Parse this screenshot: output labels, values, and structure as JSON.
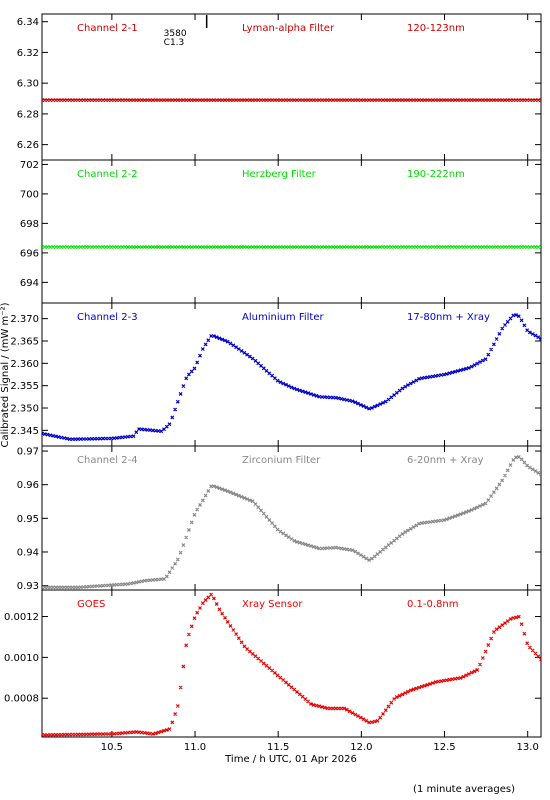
{
  "ylabel": "Calibrated Signal / (mW m⁻²)",
  "xlabel": "Time / h UTC, 01 Apr 2026",
  "footnote": "(1 minute averages)",
  "xlim": [
    10.08,
    13.08
  ],
  "xticks": [
    10.5,
    11.0,
    11.5,
    12.0,
    12.5,
    13.0
  ],
  "xtick_labels": [
    "10.5",
    "11.0",
    "11.5",
    "12.0",
    "12.5",
    "13.0"
  ],
  "top_marker": {
    "x": 11.07,
    "label1": "3580",
    "label2": "C1.3"
  },
  "chart_data": [
    {
      "type": "scatter",
      "color": "#cc0000",
      "label_left": "Channel 2-1",
      "label_mid": "Lyman-alpha Filter",
      "label_right": "120-123nm",
      "ylim": [
        6.25,
        6.345
      ],
      "yticks": [
        6.26,
        6.28,
        6.3,
        6.32,
        6.34
      ],
      "ytick_labels": [
        "6.26",
        "6.28",
        "6.30",
        "6.32",
        "6.34"
      ],
      "x": [
        10.08,
        13.08
      ],
      "y": [
        6.289,
        6.289
      ]
    },
    {
      "type": "scatter",
      "color": "#00dd00",
      "label_left": "Channel 2-2",
      "label_mid": "Herzberg Filter",
      "label_right": "190-222nm",
      "ylim": [
        692.6,
        702.3
      ],
      "yticks": [
        694,
        696,
        698,
        700,
        702
      ],
      "ytick_labels": [
        "694",
        "696",
        "698",
        "700",
        "702"
      ],
      "x": [
        10.08,
        13.08
      ],
      "y": [
        696.4,
        696.4
      ]
    },
    {
      "type": "scatter",
      "color": "#0000cc",
      "label_left": "Channel 2-3",
      "label_mid": "Aluminium Filter",
      "label_right": "17-80nm + Xray",
      "ylim": [
        2.3415,
        2.3735
      ],
      "yticks": [
        2.345,
        2.35,
        2.355,
        2.36,
        2.365,
        2.37
      ],
      "ytick_labels": [
        "2.345",
        "2.350",
        "2.355",
        "2.360",
        "2.365",
        "2.370"
      ],
      "x": [
        10.08,
        10.25,
        10.5,
        10.63,
        10.66,
        10.8,
        10.85,
        10.95,
        11.0,
        11.05,
        11.1,
        11.2,
        11.35,
        11.5,
        11.6,
        11.75,
        11.85,
        11.95,
        12.05,
        12.15,
        12.25,
        12.35,
        12.5,
        12.65,
        12.75,
        12.85,
        12.92,
        12.95,
        13.0,
        13.08
      ],
      "y": [
        2.3443,
        2.343,
        2.3432,
        2.3437,
        2.3453,
        2.3448,
        2.3465,
        2.357,
        2.359,
        2.3635,
        2.3663,
        2.3648,
        2.361,
        2.356,
        2.3543,
        2.3525,
        2.3523,
        2.3515,
        2.3498,
        2.3515,
        2.3545,
        2.3566,
        2.3575,
        2.359,
        2.361,
        2.368,
        2.371,
        2.3705,
        2.3672,
        2.3655
      ]
    },
    {
      "type": "scatter",
      "color": "#888888",
      "label_left": "Channel 2-4",
      "label_mid": "Zirconium Filter",
      "label_right": "6-20nm + Xray",
      "ylim": [
        0.9287,
        0.9715
      ],
      "yticks": [
        0.93,
        0.94,
        0.95,
        0.96,
        0.97
      ],
      "ytick_labels": [
        "0.93",
        "0.94",
        "0.95",
        "0.96",
        "0.97"
      ],
      "x": [
        10.08,
        10.3,
        10.6,
        10.7,
        10.82,
        10.9,
        11.0,
        11.1,
        11.2,
        11.35,
        11.5,
        11.6,
        11.75,
        11.85,
        11.95,
        12.05,
        12.15,
        12.25,
        12.35,
        12.5,
        12.65,
        12.75,
        12.85,
        12.92,
        12.95,
        13.0,
        13.08
      ],
      "y": [
        0.9295,
        0.9295,
        0.9305,
        0.9315,
        0.932,
        0.938,
        0.9515,
        0.9598,
        0.958,
        0.955,
        0.9465,
        0.9432,
        0.941,
        0.9413,
        0.9405,
        0.9375,
        0.9415,
        0.9455,
        0.9485,
        0.9495,
        0.9522,
        0.9545,
        0.9615,
        0.968,
        0.9683,
        0.9655,
        0.963
      ]
    },
    {
      "type": "scatter",
      "color": "#ee0000",
      "label_left": "GOES",
      "label_mid": "Xray Sensor",
      "label_right": "0.1-0.8nm",
      "ylim": [
        0.00061,
        0.00133
      ],
      "yticks": [
        0.0008,
        0.001,
        0.0012
      ],
      "ytick_labels": [
        "0.0008",
        "0.0010",
        "0.0012"
      ],
      "x": [
        10.08,
        10.5,
        10.65,
        10.75,
        10.85,
        10.9,
        10.95,
        11.0,
        11.05,
        11.1,
        11.15,
        11.2,
        11.3,
        11.5,
        11.7,
        11.8,
        11.9,
        12.05,
        12.1,
        12.2,
        12.3,
        12.45,
        12.6,
        12.7,
        12.8,
        12.9,
        12.95,
        13.0,
        13.08
      ],
      "y": [
        0.00062,
        0.000625,
        0.000635,
        0.000625,
        0.00065,
        0.00077,
        0.00108,
        0.0012,
        0.00127,
        0.00131,
        0.00123,
        0.00117,
        0.00105,
        0.00091,
        0.00077,
        0.00075,
        0.00075,
        0.00068,
        0.00069,
        0.0008,
        0.00084,
        0.00088,
        0.0009,
        0.00094,
        0.00113,
        0.00119,
        0.0012,
        0.00106,
        0.00099
      ]
    }
  ]
}
